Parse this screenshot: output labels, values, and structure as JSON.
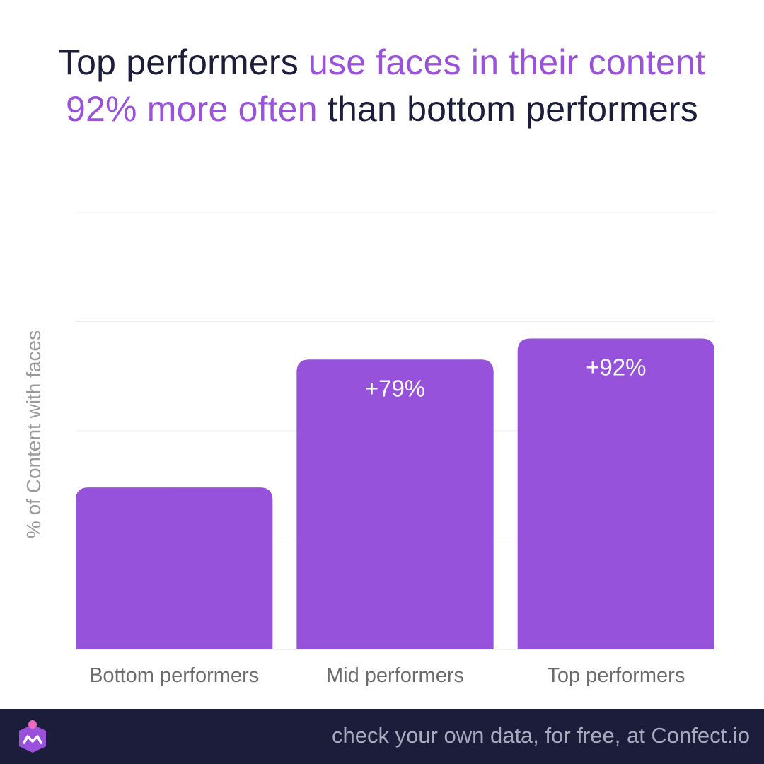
{
  "title": {
    "line1_part1": "Top performers ",
    "line1_part2": "use faces in their content",
    "line2_part1": "92% more often",
    "line2_part2": " than bottom performers"
  },
  "colors": {
    "bar": "#9752dc",
    "title_dark": "#1b1d3a",
    "title_accent": "#9a51dc",
    "footer_bg": "#1b1d3a"
  },
  "chart_data": {
    "type": "bar",
    "categories": [
      "Bottom performers",
      "Mid performers",
      "Top performers"
    ],
    "values": [
      1.0,
      1.79,
      1.92
    ],
    "data_labels": [
      "",
      "+79%",
      "+92%"
    ],
    "title": "",
    "xlabel": "",
    "ylabel": "% of Content with faces",
    "ylim": [
      0,
      2.7
    ],
    "grid": true,
    "y_ticks_shown": false
  },
  "footer": {
    "text": "check your own data, for free, at Confect.io",
    "logo_icon": "confect-crown-logo-icon"
  }
}
